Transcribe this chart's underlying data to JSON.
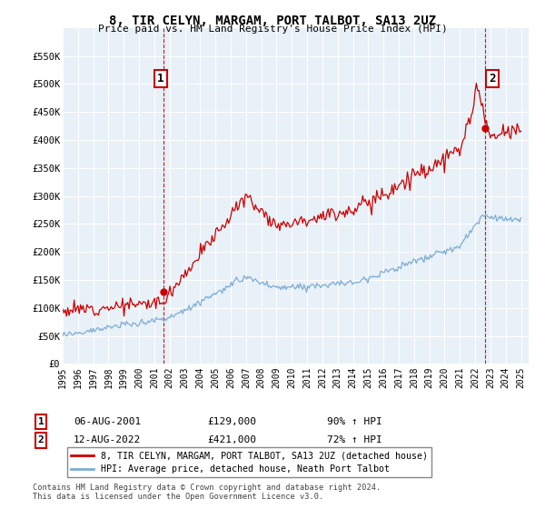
{
  "title": "8, TIR CELYN, MARGAM, PORT TALBOT, SA13 2UZ",
  "subtitle": "Price paid vs. HM Land Registry's House Price Index (HPI)",
  "legend_line1": "8, TIR CELYN, MARGAM, PORT TALBOT, SA13 2UZ (detached house)",
  "legend_line2": "HPI: Average price, detached house, Neath Port Talbot",
  "annotation1_label": "1",
  "annotation1_date": "06-AUG-2001",
  "annotation1_price": "£129,000",
  "annotation1_hpi": "90% ↑ HPI",
  "annotation2_label": "2",
  "annotation2_date": "12-AUG-2022",
  "annotation2_price": "£421,000",
  "annotation2_hpi": "72% ↑ HPI",
  "footer": "Contains HM Land Registry data © Crown copyright and database right 2024.\nThis data is licensed under the Open Government Licence v3.0.",
  "red_color": "#cc0000",
  "blue_color": "#7eadd4",
  "grid_color": "#cccccc",
  "background_color": "#ffffff",
  "annotation_color": "#cc0000",
  "ylim": [
    0,
    600000
  ],
  "yticks": [
    0,
    50000,
    100000,
    150000,
    200000,
    250000,
    300000,
    350000,
    400000,
    450000,
    500000,
    550000
  ],
  "ytick_labels": [
    "£0",
    "£50K",
    "£100K",
    "£150K",
    "£200K",
    "£250K",
    "£300K",
    "£350K",
    "£400K",
    "£450K",
    "£500K",
    "£550K"
  ],
  "sale1_year": 2001.625,
  "sale1_price": 129000,
  "sale2_year": 2022.625,
  "sale2_price": 421000
}
